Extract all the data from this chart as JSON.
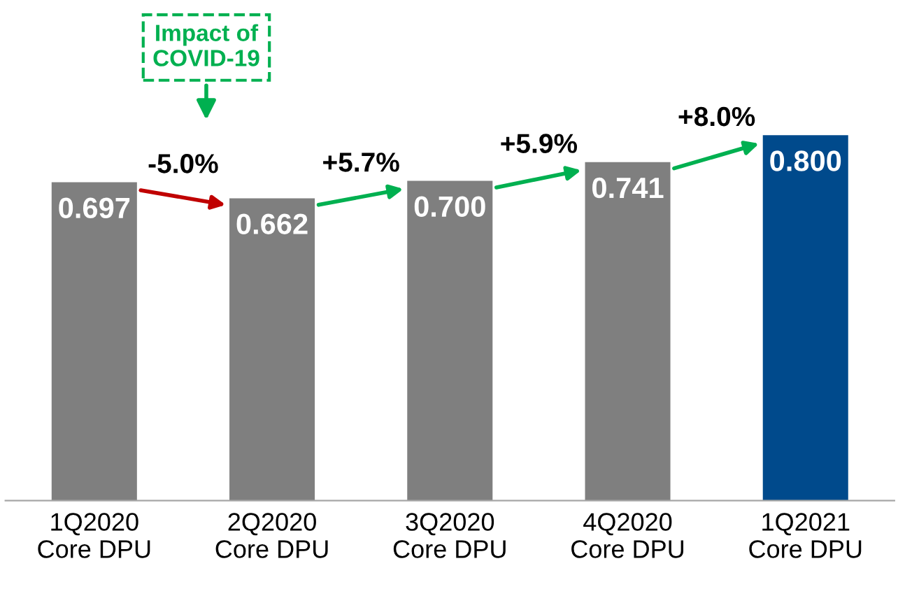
{
  "chart_data": {
    "type": "bar",
    "categories": [
      "1Q2020\nCore DPU",
      "2Q2020\nCore DPU",
      "3Q2020\nCore DPU",
      "4Q2020\nCore DPU",
      "1Q2021\nCore DPU"
    ],
    "values": [
      0.697,
      0.662,
      0.7,
      0.741,
      0.8
    ],
    "colors": [
      "#7f7f7f",
      "#7f7f7f",
      "#7f7f7f",
      "#7f7f7f",
      "#004a8c"
    ],
    "value_labels": [
      "0.697",
      "0.662",
      "0.700",
      "0.741",
      "0.800"
    ],
    "annotations": [
      "Impact of\nCOVID-19",
      "-5.0%",
      "+5.7%",
      "+5.9%",
      "+8.0%"
    ]
  }
}
